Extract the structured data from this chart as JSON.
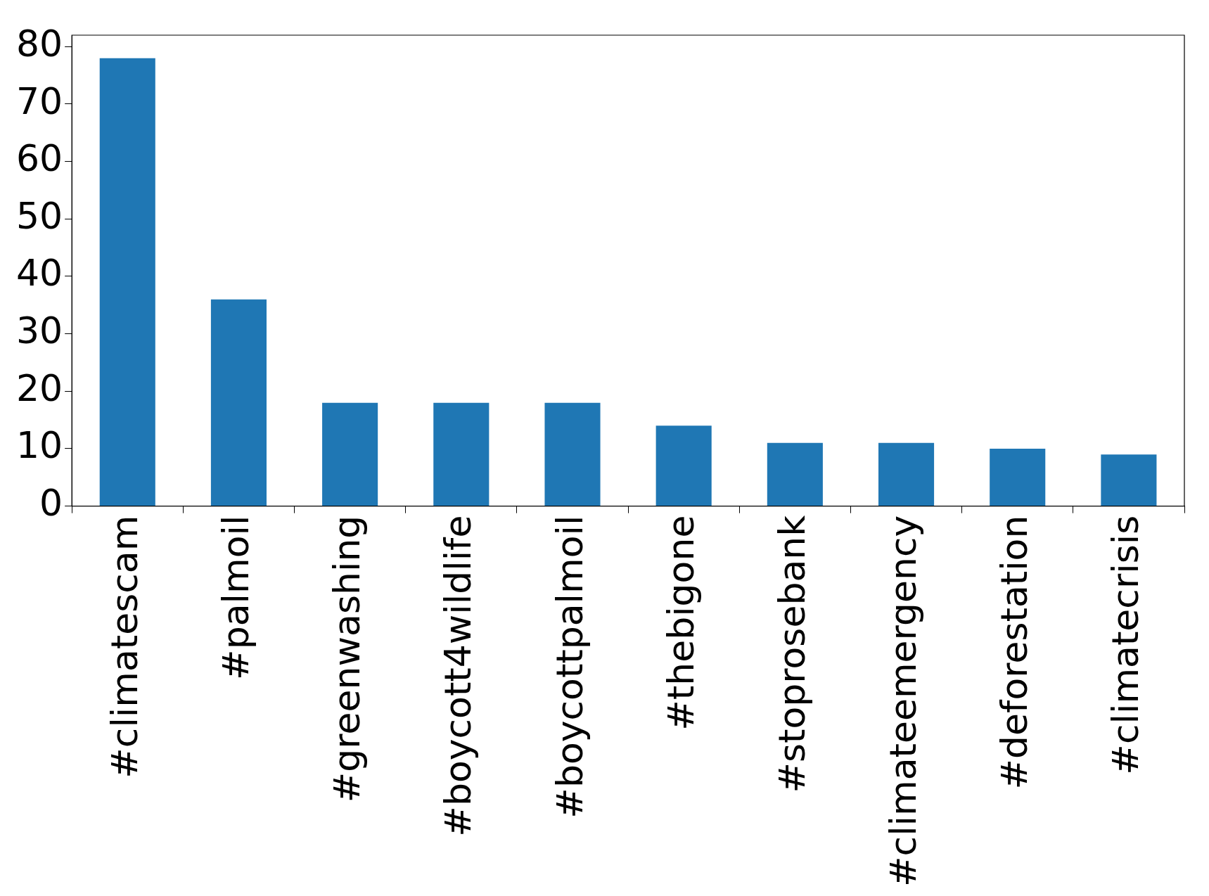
{
  "chart_data": {
    "type": "bar",
    "categories": [
      "#climatescam",
      "#palmoil",
      "#greenwashing",
      "#boycott4wildlife",
      "#boycottpalmoil",
      "#thebigone",
      "#stoprosebank",
      "#climateemergency",
      "#deforestation",
      "#climatecrisis"
    ],
    "values": [
      78,
      36,
      18,
      18,
      18,
      14,
      11,
      11,
      10,
      9
    ],
    "color": "#1f77b4",
    "ylim": [
      0,
      82
    ],
    "yticks": [
      0,
      10,
      20,
      30,
      40,
      50,
      60,
      70,
      80
    ],
    "grid": false,
    "legend": false
  }
}
